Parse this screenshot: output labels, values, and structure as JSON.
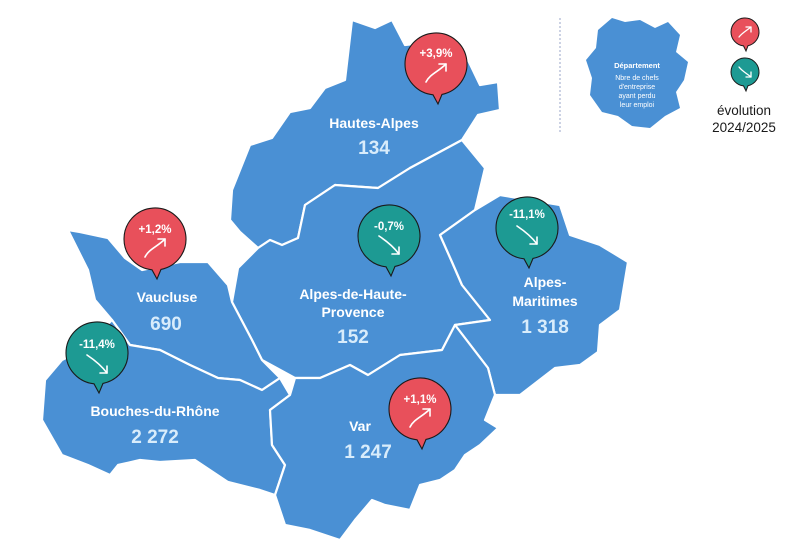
{
  "colors": {
    "region_fill": "#4a90d4",
    "increase": "#e8505b",
    "decrease": "#1d9a93",
    "value_text": "#d8ecfb"
  },
  "departments": [
    {
      "id": "hautes-alpes",
      "name_lines": [
        "Hautes-Alpes"
      ],
      "value": "134",
      "evolution": "+3,9%",
      "trend": "up"
    },
    {
      "id": "alpes-de-haute-provence",
      "name_lines": [
        "Alpes-de-Haute-",
        "Provence"
      ],
      "value": "152",
      "evolution": "-0,7%",
      "trend": "down"
    },
    {
      "id": "alpes-maritimes",
      "name_lines": [
        "Alpes-",
        "Maritimes"
      ],
      "value": "1 318",
      "evolution": "-11,1%",
      "trend": "down"
    },
    {
      "id": "vaucluse",
      "name_lines": [
        "Vaucluse"
      ],
      "value": "690",
      "evolution": "+1,2%",
      "trend": "up"
    },
    {
      "id": "bouches-du-rhone",
      "name_lines": [
        "Bouches-du-Rhône"
      ],
      "value": "2 272",
      "evolution": "-11,4%",
      "trend": "down"
    },
    {
      "id": "var",
      "name_lines": [
        "Var"
      ],
      "value": "1 247",
      "evolution": "+1,1%",
      "trend": "up"
    }
  ],
  "legend": {
    "title": "Département",
    "description_lines": [
      "Nbre de chefs",
      "d'entreprise",
      "ayant perdu",
      "leur emploi"
    ],
    "up_icon": "arrow-up-right-icon",
    "down_icon": "arrow-down-right-icon",
    "evolution_label_lines": [
      "évolution",
      "2024/2025"
    ]
  }
}
